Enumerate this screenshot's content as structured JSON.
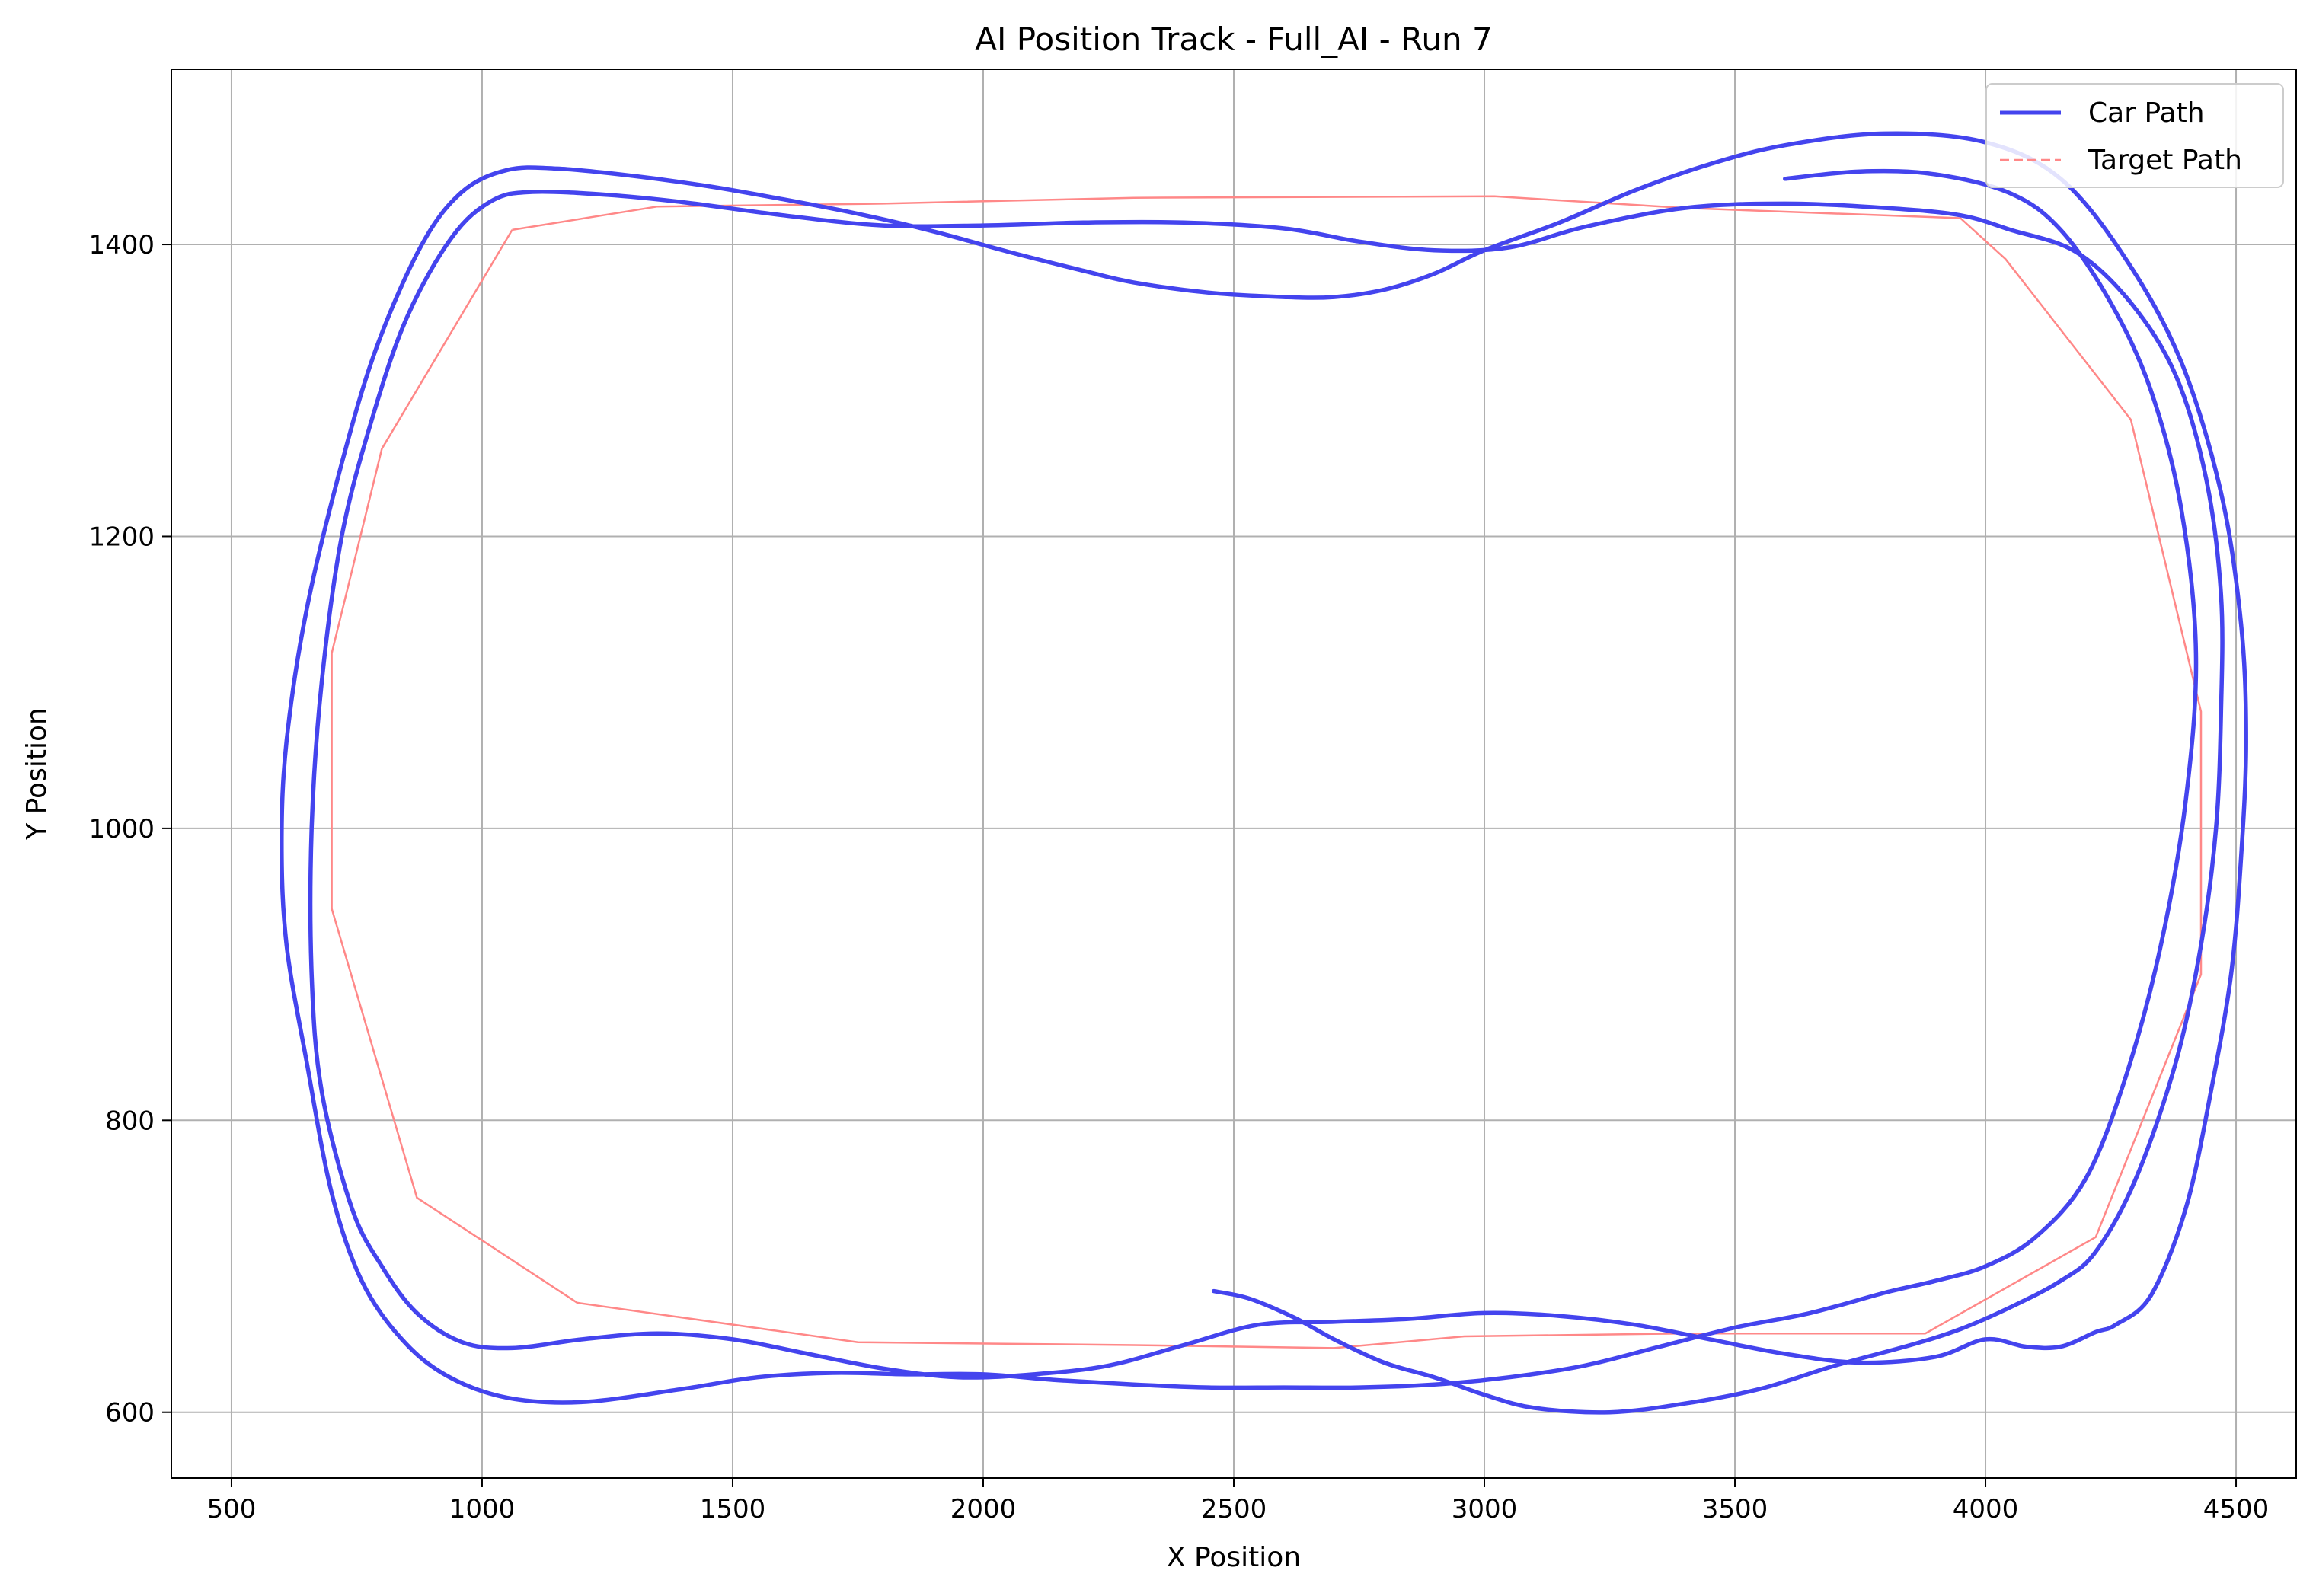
{
  "chart_data": {
    "type": "line",
    "title": "AI Position Track - Full_AI - Run 7",
    "xlabel": "X Position",
    "ylabel": "Y Position",
    "xlim": [
      380,
      4620
    ],
    "ylim": [
      555,
      1520
    ],
    "xticks": [
      500,
      1000,
      1500,
      2000,
      2500,
      3000,
      3500,
      4000,
      4500
    ],
    "yticks": [
      600,
      800,
      1000,
      1200,
      1400
    ],
    "grid": true,
    "legend_position": "top-right",
    "series": [
      {
        "name": "Car Path",
        "color": "#4444ee",
        "points": [
          [
            2460,
            683
          ],
          [
            2530,
            678
          ],
          [
            2620,
            665
          ],
          [
            2700,
            650
          ],
          [
            2800,
            634
          ],
          [
            2900,
            624
          ],
          [
            3000,
            612
          ],
          [
            3100,
            603
          ],
          [
            3250,
            600
          ],
          [
            3400,
            606
          ],
          [
            3550,
            616
          ],
          [
            3700,
            632
          ],
          [
            3850,
            646
          ],
          [
            3950,
            657
          ],
          [
            4050,
            672
          ],
          [
            4150,
            690
          ],
          [
            4220,
            710
          ],
          [
            4300,
            760
          ],
          [
            4380,
            840
          ],
          [
            4430,
            920
          ],
          [
            4460,
            1000
          ],
          [
            4470,
            1080
          ],
          [
            4470,
            1160
          ],
          [
            4440,
            1240
          ],
          [
            4380,
            1310
          ],
          [
            4290,
            1360
          ],
          [
            4180,
            1395
          ],
          [
            4050,
            1410
          ],
          [
            3950,
            1420
          ],
          [
            3800,
            1425
          ],
          [
            3600,
            1428
          ],
          [
            3400,
            1425
          ],
          [
            3200,
            1412
          ],
          [
            3050,
            1398
          ],
          [
            2900,
            1396
          ],
          [
            2750,
            1402
          ],
          [
            2600,
            1411
          ],
          [
            2400,
            1415
          ],
          [
            2200,
            1415
          ],
          [
            2000,
            1413
          ],
          [
            1800,
            1413
          ],
          [
            1600,
            1420
          ],
          [
            1400,
            1429
          ],
          [
            1250,
            1434
          ],
          [
            1100,
            1436
          ],
          [
            1020,
            1430
          ],
          [
            940,
            1405
          ],
          [
            850,
            1350
          ],
          [
            780,
            1280
          ],
          [
            720,
            1200
          ],
          [
            680,
            1100
          ],
          [
            660,
            1000
          ],
          [
            660,
            900
          ],
          [
            680,
            820
          ],
          [
            740,
            740
          ],
          [
            800,
            700
          ],
          [
            870,
            668
          ],
          [
            960,
            648
          ],
          [
            1060,
            644
          ],
          [
            1200,
            650
          ],
          [
            1350,
            654
          ],
          [
            1500,
            650
          ],
          [
            1650,
            640
          ],
          [
            1800,
            630
          ],
          [
            1950,
            624
          ],
          [
            2100,
            626
          ],
          [
            2250,
            632
          ],
          [
            2400,
            646
          ],
          [
            2550,
            660
          ],
          [
            2700,
            662
          ],
          [
            2850,
            664
          ],
          [
            3000,
            668
          ],
          [
            3150,
            666
          ],
          [
            3300,
            660
          ],
          [
            3450,
            650
          ],
          [
            3600,
            640
          ],
          [
            3750,
            634
          ],
          [
            3900,
            638
          ],
          [
            4000,
            650
          ],
          [
            4080,
            645
          ],
          [
            4150,
            645
          ],
          [
            4220,
            655
          ],
          [
            4260,
            660
          ],
          [
            4330,
            680
          ],
          [
            4400,
            740
          ],
          [
            4450,
            820
          ],
          [
            4490,
            900
          ],
          [
            4510,
            980
          ],
          [
            4520,
            1060
          ],
          [
            4510,
            1140
          ],
          [
            4470,
            1230
          ],
          [
            4390,
            1320
          ],
          [
            4280,
            1390
          ],
          [
            4150,
            1445
          ],
          [
            4000,
            1470
          ],
          [
            3800,
            1476
          ],
          [
            3600,
            1468
          ],
          [
            3450,
            1455
          ],
          [
            3300,
            1437
          ],
          [
            3150,
            1415
          ],
          [
            3000,
            1396
          ],
          [
            2900,
            1380
          ],
          [
            2800,
            1369
          ],
          [
            2700,
            1364
          ],
          [
            2600,
            1364
          ],
          [
            2450,
            1367
          ],
          [
            2300,
            1374
          ],
          [
            2200,
            1382
          ],
          [
            2050,
            1395
          ],
          [
            1900,
            1409
          ],
          [
            1750,
            1421
          ],
          [
            1600,
            1431
          ],
          [
            1450,
            1440
          ],
          [
            1300,
            1447
          ],
          [
            1150,
            1452
          ],
          [
            1050,
            1451
          ],
          [
            960,
            1436
          ],
          [
            880,
            1400
          ],
          [
            790,
            1330
          ],
          [
            720,
            1250
          ],
          [
            650,
            1150
          ],
          [
            610,
            1060
          ],
          [
            600,
            990
          ],
          [
            610,
            920
          ],
          [
            650,
            840
          ],
          [
            700,
            750
          ],
          [
            760,
            690
          ],
          [
            840,
            650
          ],
          [
            930,
            625
          ],
          [
            1050,
            610
          ],
          [
            1200,
            607
          ],
          [
            1400,
            616
          ],
          [
            1550,
            624
          ],
          [
            1700,
            627
          ],
          [
            1850,
            626
          ],
          [
            2000,
            626
          ],
          [
            2150,
            622
          ],
          [
            2300,
            619
          ],
          [
            2450,
            617
          ],
          [
            2600,
            617
          ],
          [
            2750,
            617
          ],
          [
            2900,
            619
          ],
          [
            3050,
            624
          ],
          [
            3200,
            632
          ],
          [
            3350,
            645
          ],
          [
            3500,
            658
          ],
          [
            3650,
            668
          ],
          [
            3800,
            682
          ],
          [
            3900,
            690
          ],
          [
            4000,
            700
          ],
          [
            4100,
            720
          ],
          [
            4200,
            760
          ],
          [
            4280,
            830
          ],
          [
            4350,
            920
          ],
          [
            4400,
            1020
          ],
          [
            4420,
            1120
          ],
          [
            4390,
            1220
          ],
          [
            4330,
            1300
          ],
          [
            4250,
            1360
          ],
          [
            4150,
            1410
          ],
          [
            4050,
            1435
          ],
          [
            3900,
            1448
          ],
          [
            3750,
            1450
          ],
          [
            3600,
            1445
          ]
        ]
      },
      {
        "name": "Target Path",
        "color": "#ff8888",
        "points": [
          [
            1060,
            1410
          ],
          [
            1350,
            1426
          ],
          [
            1800,
            1428
          ],
          [
            2300,
            1432
          ],
          [
            3020,
            1433
          ],
          [
            3400,
            1425
          ],
          [
            3950,
            1418
          ],
          [
            4040,
            1390
          ],
          [
            4290,
            1280
          ],
          [
            4430,
            1080
          ],
          [
            4430,
            900
          ],
          [
            4220,
            720
          ],
          [
            3880,
            654
          ],
          [
            3400,
            654
          ],
          [
            2960,
            652
          ],
          [
            2700,
            644
          ],
          [
            2300,
            646
          ],
          [
            1750,
            648
          ],
          [
            1190,
            675
          ],
          [
            870,
            747
          ],
          [
            700,
            945
          ],
          [
            700,
            1120
          ],
          [
            800,
            1260
          ],
          [
            1060,
            1410
          ]
        ]
      }
    ]
  }
}
